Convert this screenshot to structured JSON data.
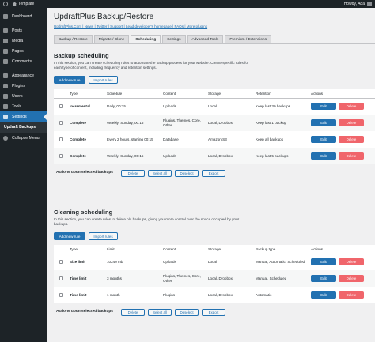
{
  "adminbar": {
    "site_name": "Template",
    "howdy": "Howdy, Ada"
  },
  "sidebar": {
    "items": [
      {
        "label": "Dashboard",
        "icon": "dashboard-icon"
      },
      {
        "label": "Posts",
        "icon": "posts-icon"
      },
      {
        "label": "Media",
        "icon": "media-icon"
      },
      {
        "label": "Pages",
        "icon": "pages-icon"
      },
      {
        "label": "Comments",
        "icon": "comments-icon"
      },
      {
        "label": "Appearance",
        "icon": "appearance-icon"
      },
      {
        "label": "Plugins",
        "icon": "plugins-icon"
      },
      {
        "label": "Users",
        "icon": "users-icon"
      },
      {
        "label": "Tools",
        "icon": "tools-icon"
      },
      {
        "label": "Settings",
        "icon": "settings-icon"
      }
    ],
    "submenu": "Updraft Backups",
    "collapse": "Collapse Menu"
  },
  "page": {
    "title": "UpdraftPlus Backup/Restore",
    "links": "UpdraftPlus.Com | News | Twitter | Support | Lead developer's homepage | FAQs | More plugins",
    "tabs": [
      "Backup / Restore",
      "Migrate / Clone",
      "Scheduling",
      "Settings",
      "Advanced Tools",
      "Premium / Extensions"
    ],
    "active_tab": "Scheduling"
  },
  "backup": {
    "title": "Backup scheduling",
    "description": "In this section, you can create scheduling rules to automate the backup process for your website. Create specific rules for each type of content, including frequency and retention settings.",
    "add_label": "Add new rule",
    "import_label": "Import rules",
    "columns": [
      "Type",
      "Schedule",
      "Content",
      "Storage",
      "Retention",
      "Actions"
    ],
    "rows": [
      {
        "type": "Incremental",
        "schedule": "Daily, 00:15",
        "content": "Uploads",
        "storage": "Local",
        "retention": "Keep last 30 backups"
      },
      {
        "type": "Complete",
        "schedule": "Weekly, Sunday, 00:15",
        "content": "Plugins, Themes, Core, Other",
        "storage": "Local, Dropbox",
        "retention": "Keep last 1 backup"
      },
      {
        "type": "Complete",
        "schedule": "Every 2 hours, starting 00:15",
        "content": "Database",
        "storage": "Amazon S3",
        "retention": "Keep all backups"
      },
      {
        "type": "Complete",
        "schedule": "Weekly, Sunday, 00:15",
        "content": "Uploads",
        "storage": "Local, Dropbox",
        "retention": "Keep last 5 backups"
      }
    ],
    "edit_label": "Edit",
    "delete_label": "Delete",
    "bulk_label": "Actions upon selected backups",
    "bulk_delete": "Delete",
    "bulk_select_all": "Select all",
    "bulk_deselect": "Deselect",
    "bulk_export": "Export"
  },
  "cleaning": {
    "title": "Cleaning scheduling",
    "description": "In this section, you can create rules to delete old backups, giving you more control over the space occupied by your backups.",
    "add_label": "Add new rule",
    "import_label": "Import rules",
    "columns": [
      "Type",
      "Limit",
      "Content",
      "Storage",
      "Backup type",
      "Actions"
    ],
    "rows": [
      {
        "type": "Size limit",
        "limit": "10240 mb",
        "content": "Uploads",
        "storage": "Local",
        "backup_type": "Manual, Automatic, Scheduled"
      },
      {
        "type": "Time limit",
        "limit": "3 months",
        "content": "Plugins, Themes, Core, Other",
        "storage": "Local, Dropbox",
        "backup_type": "Manual, Scheduled"
      },
      {
        "type": "Time limit",
        "limit": "1 month",
        "content": "Plugins",
        "storage": "Local, Dropbox",
        "backup_type": "Automatic"
      }
    ],
    "edit_label": "Edit",
    "delete_label": "Delete",
    "bulk_label": "Actions upon selected backups",
    "bulk_delete": "Delete",
    "bulk_select_all": "Select all",
    "bulk_deselect": "Deselect",
    "bulk_export": "Export"
  },
  "colors": {
    "primary": "#2271b1",
    "danger": "#f0656b",
    "admin_dark": "#1d2327"
  }
}
